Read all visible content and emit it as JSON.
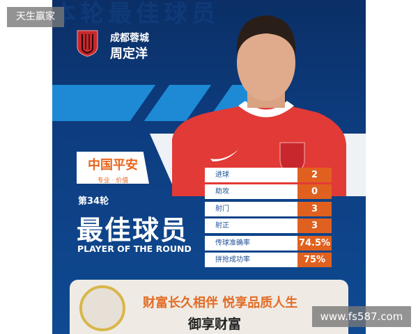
{
  "watermark_top": "天生赢家",
  "watermark_bottom": "www.fs587.com",
  "poster": {
    "background_text": "本轮最佳球员",
    "team": "成都蓉城",
    "player_name": "周定洋",
    "sponsor": {
      "name": "中国平安",
      "tagline": "专业 · 价值"
    },
    "round": "第34轮",
    "title_cn": "最佳球员",
    "title_en": "PLAYER OF THE ROUND",
    "stats": [
      {
        "label": "进球",
        "value": "2"
      },
      {
        "label": "助攻",
        "value": "0"
      },
      {
        "label": "射门",
        "value": "3"
      },
      {
        "label": "射正",
        "value": "3"
      },
      {
        "label": "传球准确率",
        "value": "74.5%"
      },
      {
        "label": "拼抢成功率",
        "value": "75%"
      }
    ],
    "ad": {
      "slogan": "财富长久相伴 悦享品质人生",
      "product": "御享财富"
    }
  },
  "colors": {
    "navy": "#0d3d80",
    "accent_orange": "#e0611f",
    "jersey_red": "#e23a36"
  }
}
